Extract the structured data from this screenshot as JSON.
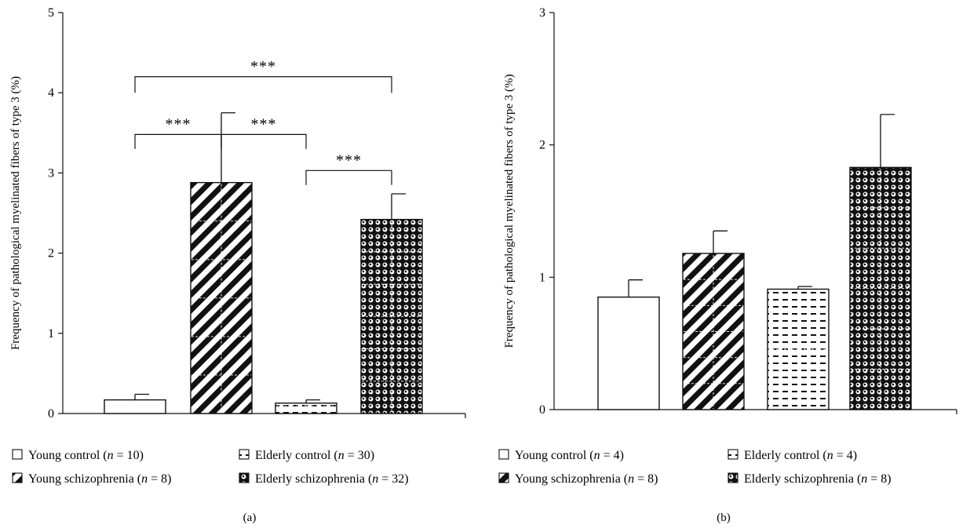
{
  "chart_data": [
    {
      "type": "bar",
      "panel_label": "(a)",
      "ylabel": "Frequency of pathological myelinated fibers of type 3 (%)",
      "ylim": [
        0,
        5
      ],
      "yticks": [
        "0",
        "1",
        "2",
        "3",
        "4",
        "5"
      ],
      "grid": false,
      "categories": [
        "Young control",
        "Young schizophrenia",
        "Elderly control",
        "Elderly schizophrenia"
      ],
      "values": [
        0.17,
        2.88,
        0.13,
        2.42
      ],
      "errors": [
        0.07,
        0.87,
        0.04,
        0.32
      ],
      "patterns": [
        "none",
        "diagonal",
        "dashes",
        "dots"
      ],
      "legend": [
        {
          "label": "Young control (",
          "n": "n",
          "eq": " = 10)",
          "pattern": "none"
        },
        {
          "label": "Elderly control (",
          "n": "n",
          "eq": " = 30)",
          "pattern": "dashes"
        },
        {
          "label": "Young schizophrenia (",
          "n": "n",
          "eq": " = 8)",
          "pattern": "diagonal"
        },
        {
          "label": "Elderly schizophrenia (",
          "n": "n",
          "eq": " = 32)",
          "pattern": "dots"
        }
      ],
      "significance": [
        {
          "from": 0,
          "to": 3,
          "y": 4.2,
          "drop": 0.2,
          "label": "***"
        },
        {
          "from": 0,
          "to": 1,
          "y": 3.48,
          "drop": 0.18,
          "label": "***"
        },
        {
          "from": 1,
          "to": 2,
          "y": 3.48,
          "drop": 0.18,
          "label": "***"
        },
        {
          "from": 2,
          "to": 3,
          "y": 3.03,
          "drop": 0.18,
          "label": "***"
        }
      ]
    },
    {
      "type": "bar",
      "panel_label": "(b)",
      "ylabel": "Frequency of pathological myelinated fibers of type 3 (%)",
      "ylim": [
        0,
        3
      ],
      "yticks": [
        "0",
        "1",
        "2",
        "3"
      ],
      "grid": false,
      "categories": [
        "Young control",
        "Young schizophrenia",
        "Elderly control",
        "Elderly schizophrenia"
      ],
      "values": [
        0.85,
        1.18,
        0.91,
        1.83
      ],
      "errors": [
        0.13,
        0.17,
        0.02,
        0.4
      ],
      "patterns": [
        "none",
        "diagonal",
        "dashes",
        "dots"
      ],
      "legend": [
        {
          "label": "Young control (",
          "n": "n",
          "eq": " = 4)",
          "pattern": "none"
        },
        {
          "label": "Elderly control (",
          "n": "n",
          "eq": " = 4)",
          "pattern": "dashes"
        },
        {
          "label": "Young schizophrenia (",
          "n": "n",
          "eq": " = 8)",
          "pattern": "diagonal"
        },
        {
          "label": "Elderly schizophrenia (",
          "n": "n",
          "eq": " = 8)",
          "pattern": "dots"
        }
      ],
      "significance": []
    }
  ]
}
